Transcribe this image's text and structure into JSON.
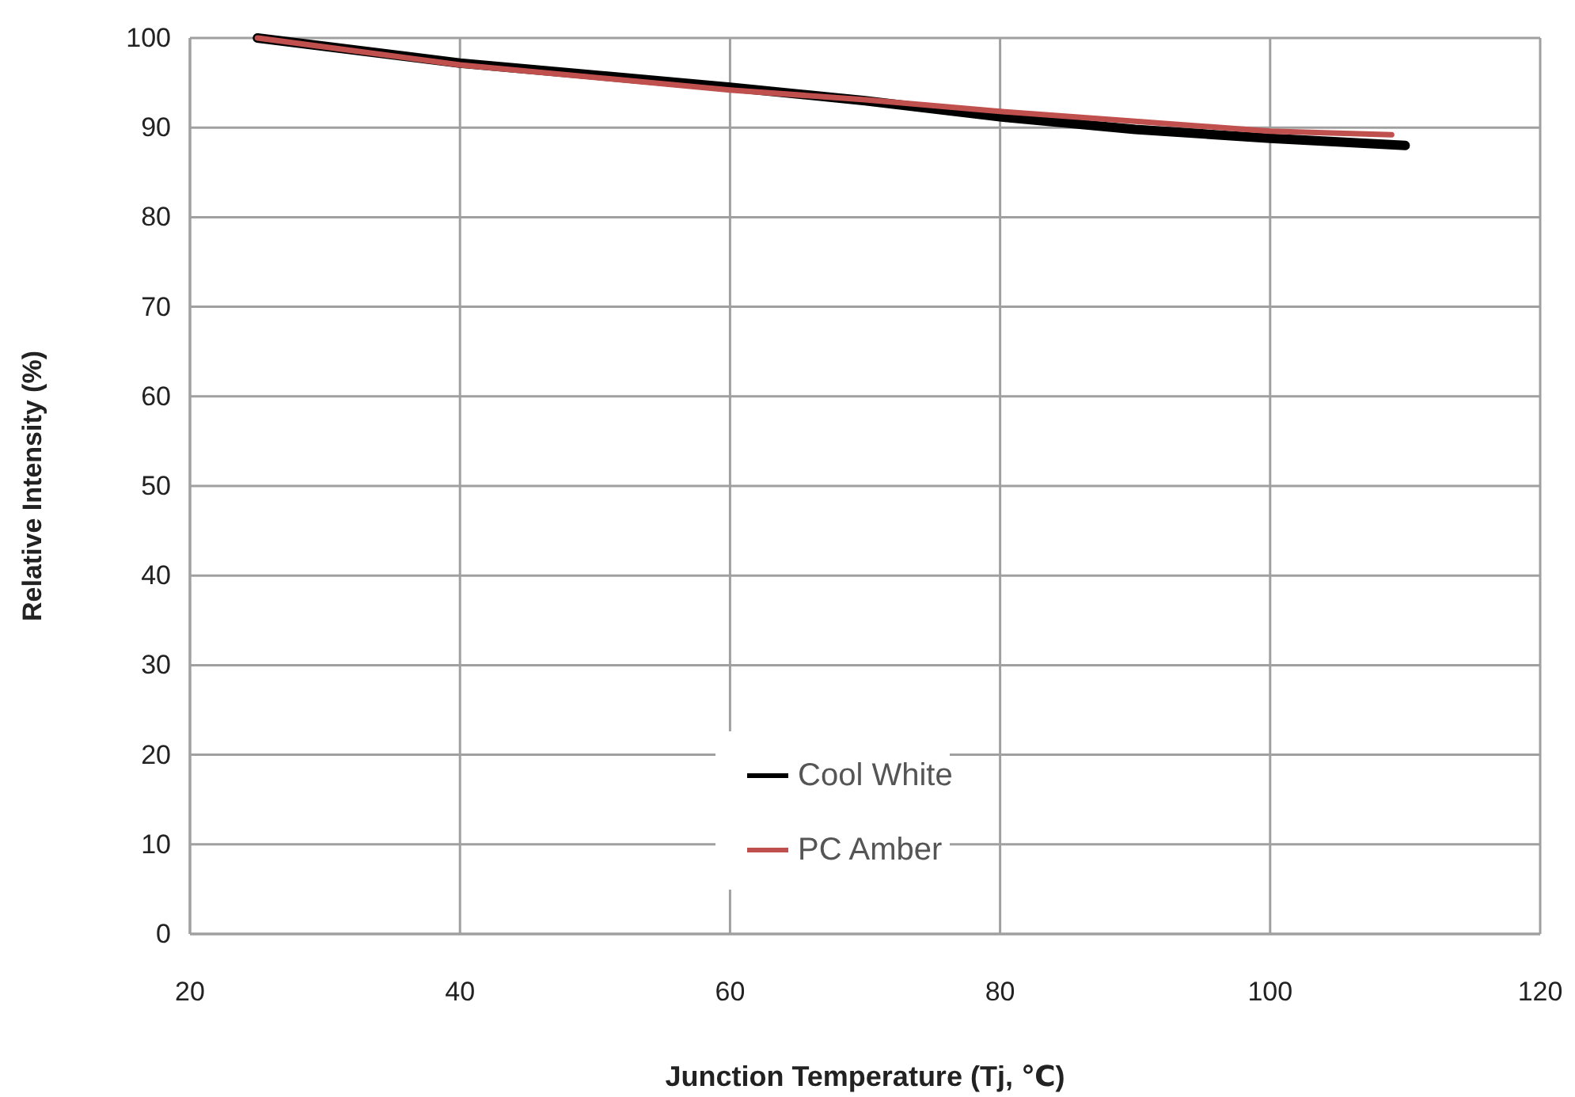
{
  "chart_data": {
    "type": "line",
    "xlabel": "Junction Temperature (Tj, ℃)",
    "ylabel": "Relative Intensity (%)",
    "xlim": [
      20,
      120
    ],
    "xticks": [
      20,
      40,
      60,
      80,
      100,
      120
    ],
    "ylim": [
      0,
      100
    ],
    "yticks": [
      0,
      10,
      20,
      30,
      40,
      50,
      60,
      70,
      80,
      90,
      100
    ],
    "grid": true,
    "legend": "bottom",
    "marker": "none",
    "line_style": "solid",
    "series": [
      {
        "name": "Cool White",
        "color": "#000000",
        "x": [
          25,
          40,
          60,
          70,
          80,
          90,
          100,
          110
        ],
        "values": [
          100,
          97.2,
          94.5,
          93,
          91.2,
          89.8,
          88.8,
          88
        ]
      },
      {
        "name": "PC Amber",
        "color": "#c0504d",
        "x": [
          25,
          40,
          60,
          70,
          80,
          90,
          100,
          109
        ],
        "values": [
          100,
          97,
          94.2,
          93.1,
          91.8,
          90.7,
          89.6,
          89.2
        ]
      }
    ]
  }
}
